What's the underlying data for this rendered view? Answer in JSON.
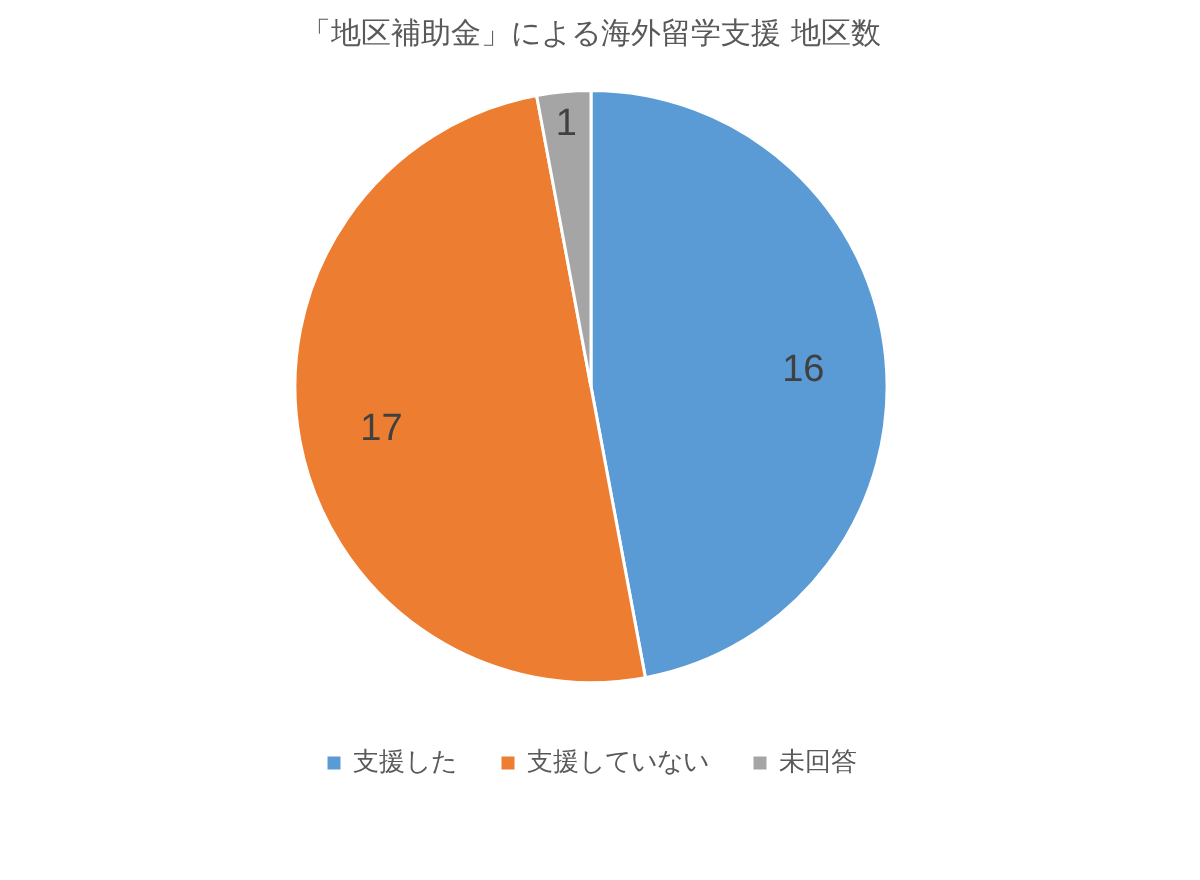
{
  "chart_data": {
    "type": "pie",
    "title": "「地区補助金」による海外留学支援 地区数",
    "categories": [
      "支援した",
      "支援していない",
      "未回答"
    ],
    "values": [
      16,
      17,
      1
    ],
    "colors": [
      "#5b9bd5",
      "#ed7d31",
      "#a5a5a5"
    ],
    "data_labels": true,
    "legend": "bottom"
  }
}
